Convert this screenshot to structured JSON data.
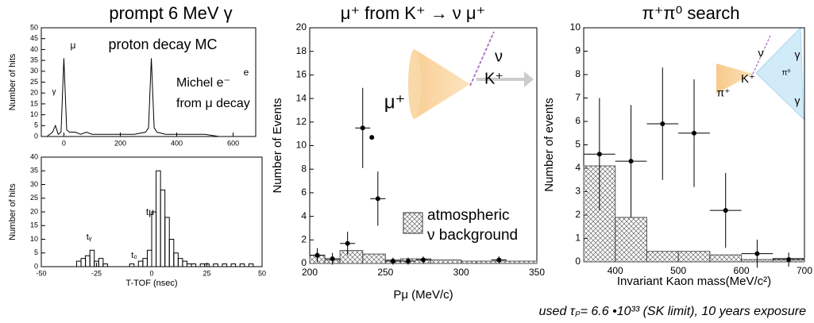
{
  "chart_data": [
    {
      "type": "line",
      "title": "prompt 6 MeV γ",
      "ylabel": "Number of hits",
      "x": [
        -60,
        -50,
        -40,
        -30,
        -20,
        -10,
        0,
        10,
        20,
        40,
        60,
        80,
        100,
        150,
        200,
        250,
        290,
        300,
        310,
        320,
        330,
        360,
        400,
        450,
        500,
        550,
        600,
        650
      ],
      "values": [
        0,
        1,
        2,
        5,
        1,
        2,
        36,
        3,
        2,
        2,
        1,
        2,
        1,
        1,
        1,
        1,
        2,
        4,
        36,
        4,
        2,
        1,
        1,
        1,
        1,
        0,
        0,
        0
      ],
      "xlim": [
        -80,
        680
      ],
      "xticks": [
        0,
        200,
        400,
        600
      ],
      "ylim": [
        0,
        50
      ],
      "yticks": [
        0,
        5,
        10,
        15,
        20,
        25,
        30,
        35,
        40,
        45,
        50
      ],
      "annotations": [
        "γ",
        "μ",
        "e",
        "proton decay MC",
        "Michel e⁻",
        "from μ decay"
      ]
    },
    {
      "type": "histogram",
      "xlabel": "T-TOF (nsec)",
      "ylabel": "Number of hits",
      "bins": [
        -50,
        -48,
        -46,
        -44,
        -42,
        -40,
        -38,
        -36,
        -34,
        -32,
        -30,
        -28,
        -26,
        -24,
        -22,
        -20,
        -18,
        -16,
        -14,
        -12,
        -10,
        -8,
        -6,
        -4,
        -2,
        0,
        2,
        4,
        6,
        8,
        10,
        12,
        14,
        16,
        18,
        20,
        22,
        24,
        26,
        28,
        30,
        32,
        34,
        36,
        38,
        40,
        42,
        44,
        46,
        48,
        50
      ],
      "counts": [
        0,
        0,
        0,
        0,
        0,
        0,
        0,
        0,
        2,
        3,
        4,
        6,
        2,
        3,
        1,
        0,
        0,
        0,
        0,
        0,
        1,
        0,
        2,
        3,
        6,
        20,
        35,
        28,
        18,
        10,
        5,
        3,
        2,
        1,
        1,
        0,
        1,
        1,
        0,
        1,
        0,
        1,
        0,
        1,
        0,
        1,
        0,
        1,
        0,
        0
      ],
      "xlim": [
        -50,
        50
      ],
      "xticks": [
        -50,
        -25,
        0,
        25,
        50
      ],
      "ylim": [
        0,
        40
      ],
      "yticks": [
        0,
        5,
        10,
        15,
        20,
        25,
        30,
        35,
        40
      ],
      "annotations": [
        "tᵧ",
        "t₀",
        "tμ"
      ]
    },
    {
      "type": "errorbar",
      "title": "μ⁺ from K⁺ → ν μ⁺",
      "xlabel": "Pμ (MeV/c)",
      "ylabel": "Number of Events",
      "points": {
        "x": [
          205,
          215,
          225,
          235,
          241,
          245,
          255,
          265,
          275,
          325
        ],
        "values": [
          0.7,
          0.4,
          1.7,
          11.5,
          10.7,
          5.5,
          0.2,
          0.2,
          0.3,
          0.3
        ],
        "errors": [
          0.6,
          0.5,
          1.0,
          3.4,
          null,
          2.3,
          0.3,
          0.3,
          0.3,
          0.3
        ],
        "xerr": 5
      },
      "background": {
        "bins": [
          200,
          210,
          220,
          235,
          250,
          260,
          280,
          300,
          310,
          350
        ],
        "counts": [
          0.7,
          0.3,
          1.1,
          0.8,
          0.3,
          0.4,
          0.3,
          0.2,
          0.2
        ]
      },
      "legend": [
        "atmospheric",
        "ν background"
      ],
      "xlim": [
        200,
        350
      ],
      "xticks": [
        200,
        250,
        300,
        350
      ],
      "ylim": [
        0,
        20
      ],
      "yticks": [
        0,
        2,
        4,
        6,
        8,
        10,
        12,
        14,
        16,
        18,
        20
      ],
      "annotations": [
        "μ⁺",
        "ν",
        "K⁺"
      ]
    },
    {
      "type": "errorbar",
      "title": "π⁺π⁰ search",
      "xlabel": "Invariant Kaon mass(MeV/c²)",
      "ylabel": "Number of events",
      "points": {
        "x": [
          375,
          425,
          475,
          525,
          575,
          625,
          675
        ],
        "values": [
          4.6,
          4.3,
          5.9,
          5.5,
          2.2,
          0.35,
          0.1
        ],
        "errors": [
          2.4,
          2.4,
          2.4,
          2.3,
          1.6,
          0.6,
          0.3
        ],
        "xerr": 25
      },
      "background": {
        "bins": [
          350,
          400,
          450,
          500,
          550,
          600,
          650,
          700
        ],
        "counts": [
          4.1,
          1.9,
          0.45,
          0.45,
          0.3,
          0.1,
          0.15
        ]
      },
      "xlim": [
        350,
        700
      ],
      "xticks": [
        400,
        500,
        600,
        700
      ],
      "ylim": [
        0,
        10
      ],
      "yticks": [
        0,
        1,
        2,
        3,
        4,
        5,
        6,
        7,
        8,
        9,
        10
      ],
      "annotations": [
        "π⁺",
        "K⁺",
        "ν",
        "π⁰",
        "γ",
        "γ"
      ]
    }
  ],
  "footnote": "used τₚ= 6.6 •10³³ (SK limit), 10 years exposure"
}
